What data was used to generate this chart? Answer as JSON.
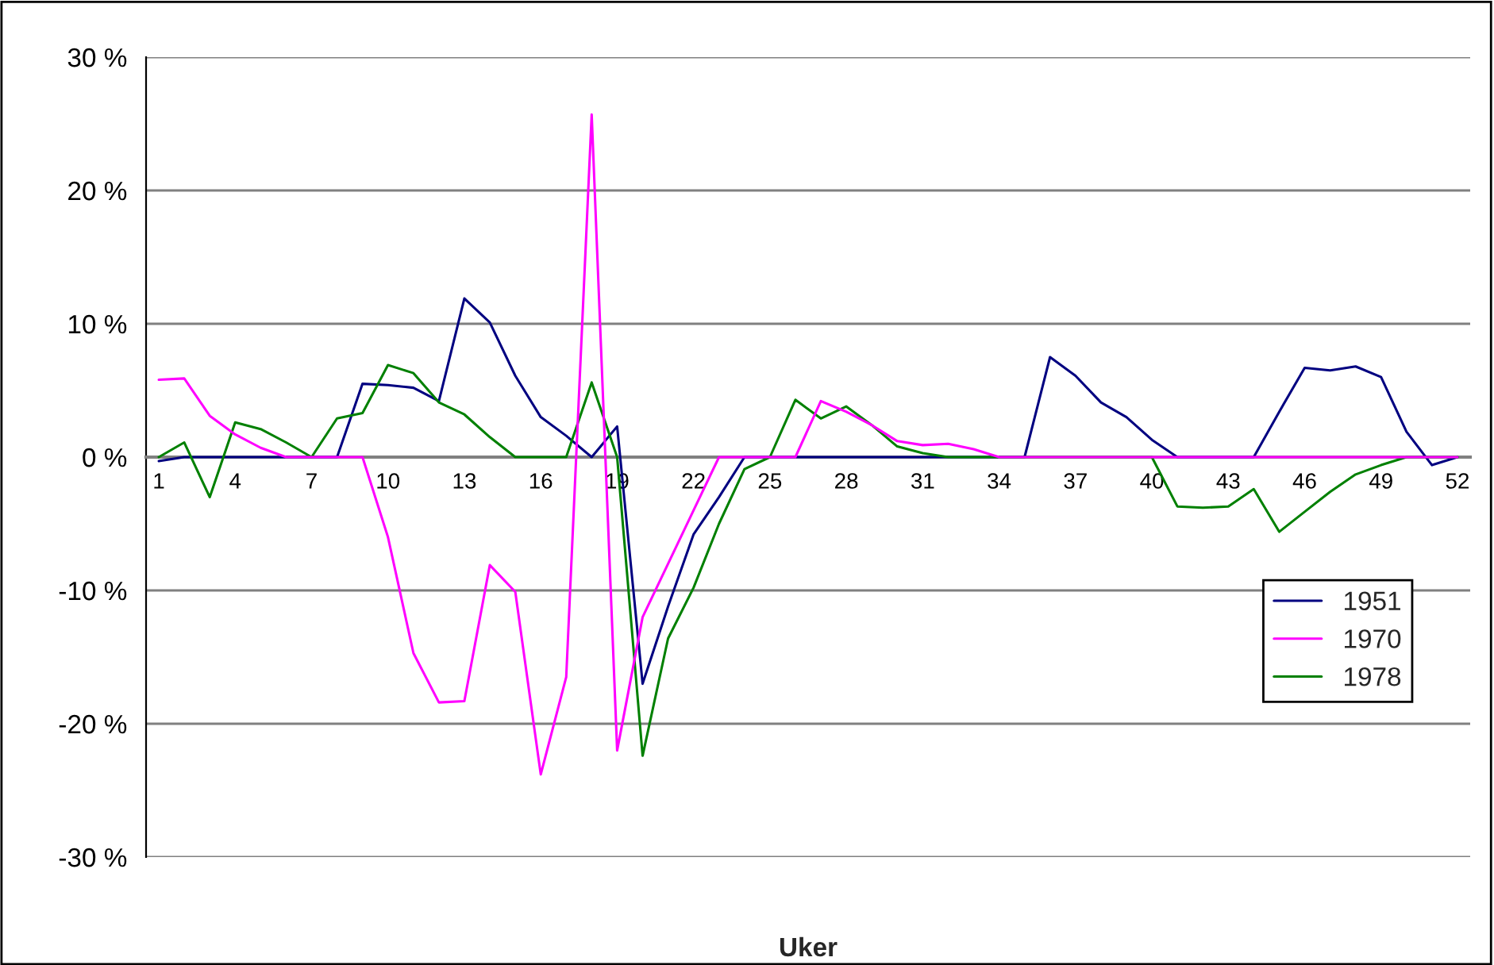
{
  "chart_data": {
    "type": "line",
    "xlabel": "Uker",
    "categories": [
      "1",
      null,
      null,
      "4",
      null,
      null,
      "7",
      null,
      null,
      "10",
      null,
      null,
      "13",
      null,
      null,
      "16",
      null,
      null,
      "19",
      null,
      null,
      "22",
      null,
      null,
      "25",
      null,
      null,
      "28",
      null,
      null,
      "31",
      null,
      null,
      "34",
      null,
      null,
      "37",
      null,
      null,
      "40",
      null,
      null,
      "43",
      null,
      null,
      "46",
      null,
      null,
      "49",
      null,
      null,
      "52"
    ],
    "series": [
      {
        "name": "1951",
        "color": "#000080",
        "values": [
          -0.3,
          0,
          0,
          0,
          0,
          0,
          0,
          0,
          5.5,
          5.4,
          5.2,
          4.2,
          11.9,
          10.1,
          6.1,
          3.0,
          1.6,
          0,
          2.3,
          -17,
          -11.2,
          -5.8,
          -3,
          0,
          0,
          0,
          0,
          0,
          0,
          0,
          0,
          0,
          0,
          0,
          0,
          7.5,
          6.1,
          4.1,
          3.0,
          1.3,
          0,
          0,
          0,
          0,
          3.4,
          6.7,
          6.5,
          6.8,
          6.0,
          1.9,
          -0.6,
          0
        ]
      },
      {
        "name": "1970",
        "color": "#ff00ff",
        "values": [
          5.8,
          5.9,
          3.1,
          1.7,
          0.7,
          0,
          0,
          0,
          0,
          -6,
          -14.7,
          -18.4,
          -18.3,
          -8.1,
          -10.1,
          -23.8,
          -16.5,
          25.7,
          -22,
          -12,
          -8,
          -4,
          0,
          0,
          0,
          0,
          4.2,
          3.4,
          2.4,
          1.2,
          0.9,
          1.0,
          0.6,
          0,
          0,
          0,
          0,
          0,
          0,
          0,
          0,
          0,
          0,
          0,
          0,
          0,
          0,
          0,
          0,
          0,
          0,
          0
        ]
      },
      {
        "name": "1978",
        "color": "#008000",
        "values": [
          0,
          1.1,
          -3.0,
          2.6,
          2.1,
          1.1,
          0,
          2.9,
          3.3,
          6.9,
          6.3,
          4.1,
          3.2,
          1.5,
          0,
          0,
          0,
          5.6,
          0,
          -22.4,
          -13.6,
          -9.8,
          -5,
          -0.9,
          0,
          4.3,
          2.9,
          3.8,
          2.4,
          0.8,
          0.3,
          0,
          0,
          0,
          0,
          0,
          0,
          0,
          0,
          0,
          -3.7,
          -3.8,
          -3.7,
          -2.4,
          -5.6,
          -4.1,
          -2.6,
          -1.3,
          -0.6,
          0,
          0,
          0
        ]
      }
    ],
    "ylim": [
      -30,
      30
    ],
    "yticks": [
      {
        "value": -30,
        "label": "-30 %"
      },
      {
        "value": -20,
        "label": "-20 %"
      },
      {
        "value": -10,
        "label": "-10 %"
      },
      {
        "value": 0,
        "label": "0 %"
      },
      {
        "value": 10,
        "label": "10 %"
      },
      {
        "value": 20,
        "label": "20 %"
      },
      {
        "value": 30,
        "label": "30 %"
      }
    ],
    "grid": "y",
    "legend": "right",
    "marker": "none",
    "line_style": "solid"
  }
}
